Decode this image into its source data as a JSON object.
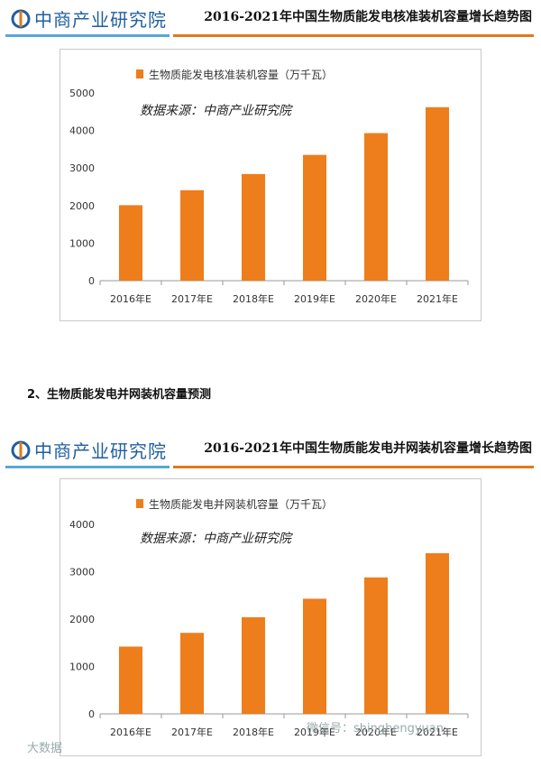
{
  "logo_text": "中商产业研究院",
  "charts": [
    {
      "header_title": "2016-2021年中国生物质能发电核准装机容量增长趋势图",
      "source_note": "数据来源：中商产业研究院",
      "legend_label": "生物质能发电核准装机容量（万千瓦）",
      "bar_color": "#ee7d1c"
    },
    {
      "header_title": "2016-2021年中国生物质能发电并网装机容量增长趋势图",
      "source_note": "数据来源：中商产业研究院",
      "legend_label": "生物质能发电并网装机容量（万千瓦）",
      "bar_color": "#ee7d1c"
    }
  ],
  "section_heading": "2、生物质能发电并网装机容量预测",
  "watermarks": {
    "bottom_left": "大数据",
    "bottom_right": "微信号：shinghengyuan"
  },
  "chart_data": [
    {
      "type": "bar",
      "categories": [
        "2016年E",
        "2017年E",
        "2018年E",
        "2019年E",
        "2020年E",
        "2021年E"
      ],
      "series": [
        {
          "name": "生物质能发电核准装机容量（万千瓦）",
          "values": [
            2010,
            2410,
            2840,
            3350,
            3930,
            4620
          ]
        }
      ],
      "ylim": [
        0,
        5000
      ],
      "yticks": [
        0,
        1000,
        2000,
        3000,
        4000,
        5000
      ],
      "xlabel": "",
      "ylabel": "",
      "grid": false,
      "legend": "top-left"
    },
    {
      "type": "bar",
      "categories": [
        "2016年E",
        "2017年E",
        "2018年E",
        "2019年E",
        "2020年E",
        "2021年E"
      ],
      "series": [
        {
          "name": "生物质能发电并网装机容量（万千瓦）",
          "values": [
            1420,
            1710,
            2040,
            2430,
            2880,
            3390
          ]
        }
      ],
      "ylim": [
        0,
        4000
      ],
      "yticks": [
        0,
        1000,
        2000,
        3000,
        4000
      ],
      "xlabel": "",
      "ylabel": "",
      "grid": false,
      "legend": "top-left"
    }
  ]
}
